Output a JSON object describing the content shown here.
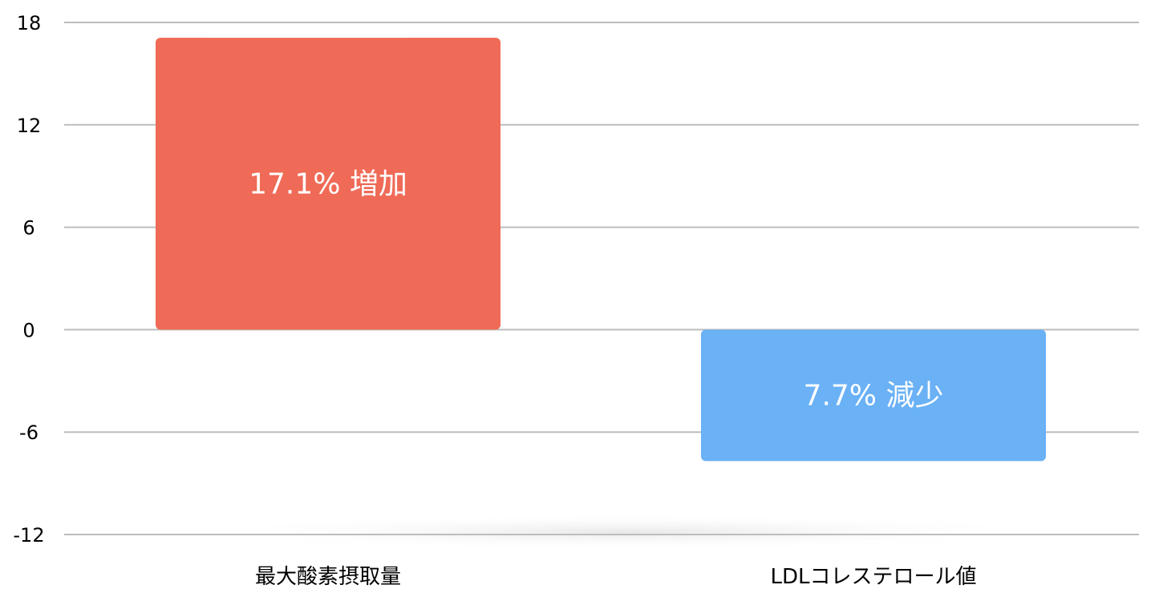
{
  "chart_data": {
    "type": "bar",
    "categories": [
      "最大酸素摂取量",
      "LDLコレステロール値"
    ],
    "values": [
      17.1,
      -7.7
    ],
    "data_labels": [
      "17.1% 増加",
      "7.7% 減少"
    ],
    "colors": [
      "#ef6b57",
      "#6ab1f5"
    ],
    "yticks": [
      18,
      12,
      6,
      0,
      -6,
      -12
    ],
    "ylim": [
      -12,
      18
    ],
    "grid": true,
    "title": "",
    "xlabel": "",
    "ylabel": ""
  }
}
